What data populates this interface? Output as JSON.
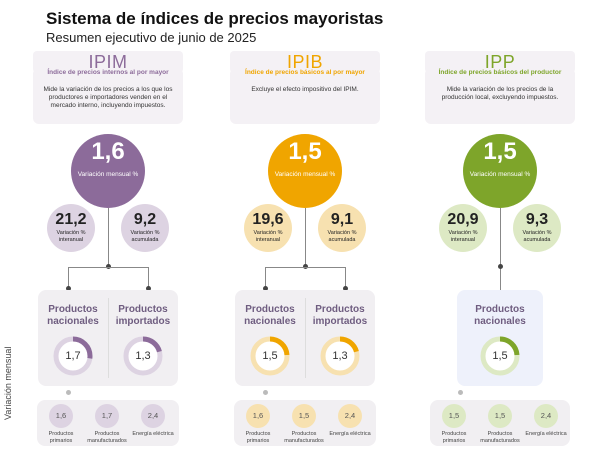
{
  "title": "Sistema de índices de precios mayoristas",
  "subtitle": "Resumen ejecutivo de junio de 2025",
  "ylabel": "Variación mensual",
  "indices": [
    {
      "key": "ipim",
      "name": "IPIM",
      "full_name": "Índice de precios internos al por mayor",
      "description": "Mide la variación de los precios a los que los productores e importadores venden en el mercado interno, incluyendo impuestos.",
      "color": "#8c6b9a",
      "light": "#ddd3e2",
      "monthly": {
        "value": "1,6",
        "label": "Variación mensual %"
      },
      "yoy": {
        "value": "21,2",
        "label": "Variación % interanual"
      },
      "accum": {
        "value": "9,2",
        "label": "Variación % acumulada"
      },
      "products": [
        {
          "label": "Productos nacionales",
          "value": "1,7",
          "pct": 0.17
        },
        {
          "label": "Productos importados",
          "value": "1,3",
          "pct": 0.13
        }
      ],
      "breakdown": [
        {
          "value": "1,6",
          "label": "Productos primarios"
        },
        {
          "value": "1,7",
          "label": "Productos manufacturados"
        },
        {
          "value": "2,4",
          "label": "Energía eléctrica"
        }
      ]
    },
    {
      "key": "ipib",
      "name": "IPIB",
      "full_name": "Índice de precios básicos al por mayor",
      "description": "Excluye el efecto impositivo del IPIM.",
      "color": "#f0a500",
      "light": "#f7e1b0",
      "monthly": {
        "value": "1,5",
        "label": "Variación mensual %"
      },
      "yoy": {
        "value": "19,6",
        "label": "Variación % interanual"
      },
      "accum": {
        "value": "9,1",
        "label": "Variación % acumulada"
      },
      "products": [
        {
          "label": "Productos nacionales",
          "value": "1,5",
          "pct": 0.15
        },
        {
          "label": "Productos importados",
          "value": "1,3",
          "pct": 0.13
        }
      ],
      "breakdown": [
        {
          "value": "1,6",
          "label": "Productos primarios"
        },
        {
          "value": "1,5",
          "label": "Productos manufacturados"
        },
        {
          "value": "2,4",
          "label": "Energía eléctrica"
        }
      ]
    },
    {
      "key": "ipp",
      "name": "IPP",
      "full_name": "Índice de precios básicos del productor",
      "description": "Mide la variación de los precios de la producción local, excluyendo impuestos.",
      "color": "#7ea52a",
      "light": "#dde9c4",
      "monthly": {
        "value": "1,5",
        "label": "Variación mensual %"
      },
      "yoy": {
        "value": "20,9",
        "label": "Variación % interanual"
      },
      "accum": {
        "value": "9,3",
        "label": "Variación % acumulada"
      },
      "products": [
        {
          "label": "Productos nacionales",
          "value": "1,5",
          "pct": 0.15
        }
      ],
      "breakdown": [
        {
          "value": "1,5",
          "label": "Productos primarios"
        },
        {
          "value": "1,5",
          "label": "Productos manufacturados"
        },
        {
          "value": "2,4",
          "label": "Energía eléctrica"
        }
      ]
    }
  ]
}
